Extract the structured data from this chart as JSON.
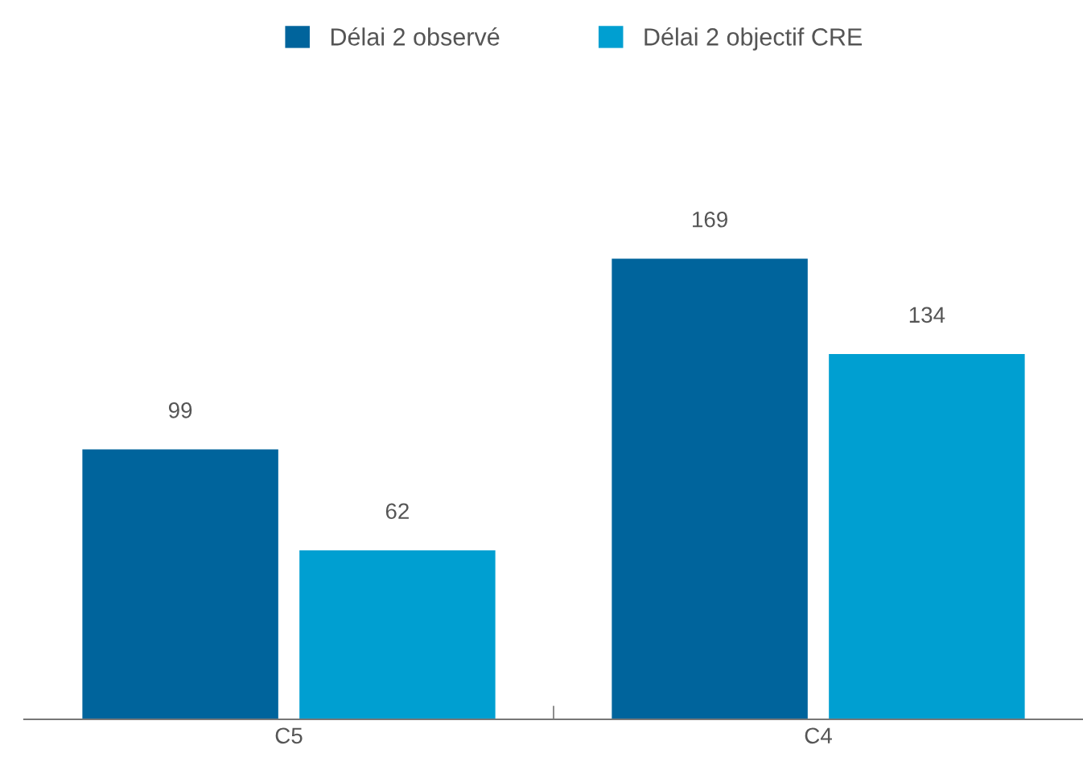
{
  "chart_data": {
    "type": "bar",
    "categories": [
      "C5",
      "C4"
    ],
    "series": [
      {
        "name": "Délai 2 observé",
        "color": "#00649c",
        "values": [
          99,
          169
        ]
      },
      {
        "name": "Délai 2 objectif CRE",
        "color": "#009fd1",
        "values": [
          62,
          134
        ]
      }
    ],
    "tick_labels": "x",
    "data_labels": true,
    "legend": "top",
    "grid": false
  }
}
